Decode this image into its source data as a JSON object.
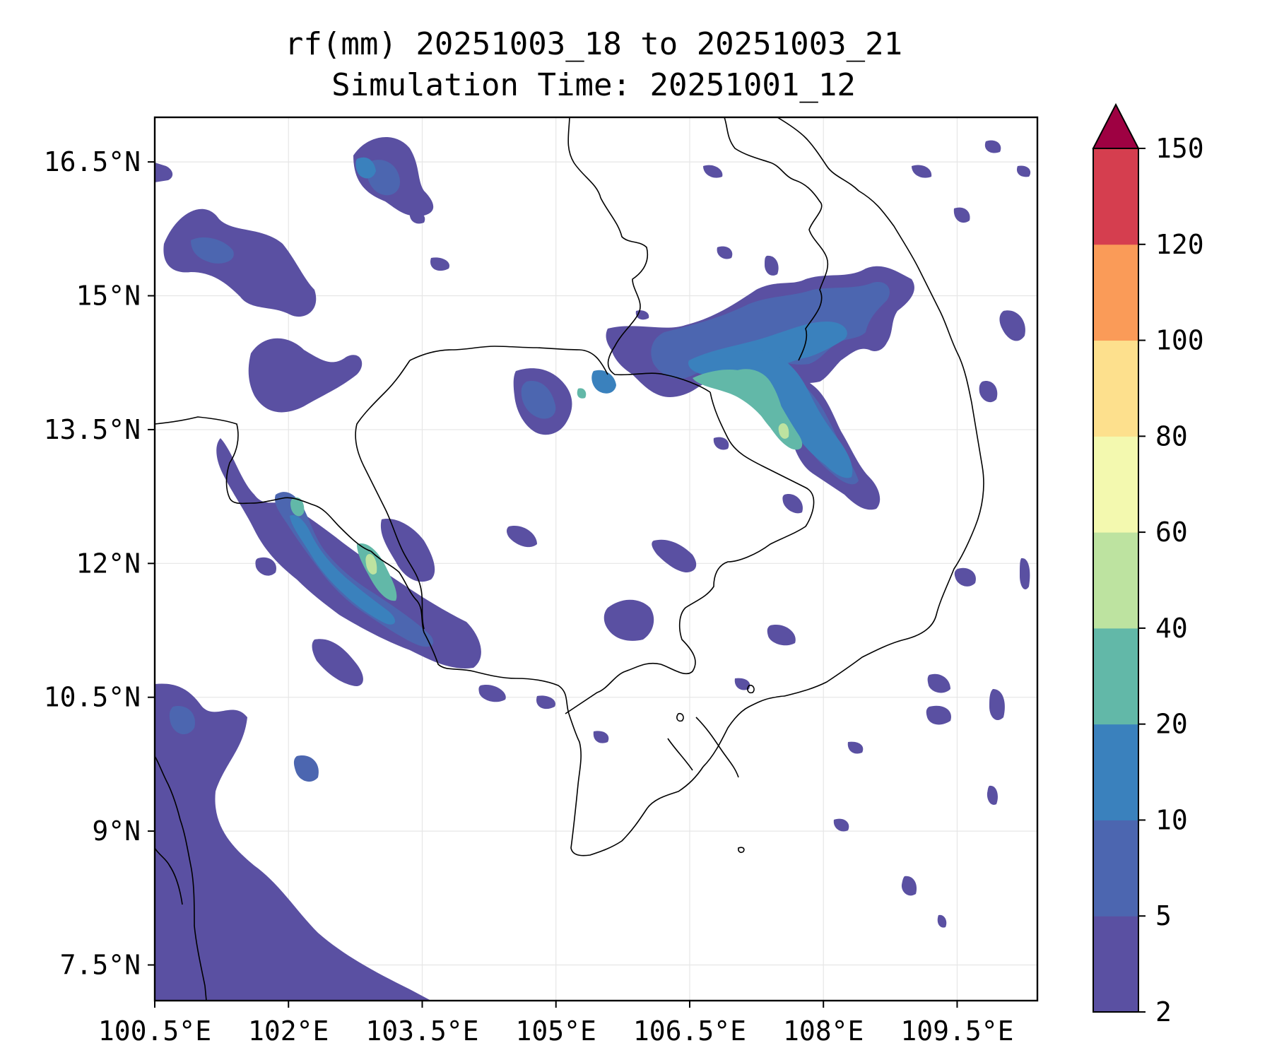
{
  "title": {
    "line1": "rf(mm) 20251003_18 to 20251003_21",
    "line2": "Simulation Time: 20251001_12"
  },
  "axes": {
    "x_ticks": [
      {
        "value": 100.5,
        "label": "100.5°E"
      },
      {
        "value": 102.0,
        "label": "102°E"
      },
      {
        "value": 103.5,
        "label": "103.5°E"
      },
      {
        "value": 105.0,
        "label": "105°E"
      },
      {
        "value": 106.5,
        "label": "106.5°E"
      },
      {
        "value": 108.0,
        "label": "108°E"
      },
      {
        "value": 109.5,
        "label": "109.5°E"
      }
    ],
    "y_ticks": [
      {
        "value": 16.5,
        "label": "16.5°N"
      },
      {
        "value": 15.0,
        "label": "15°N"
      },
      {
        "value": 13.5,
        "label": "13.5°N"
      },
      {
        "value": 12.0,
        "label": "12°N"
      },
      {
        "value": 10.5,
        "label": "10.5°N"
      },
      {
        "value": 9.0,
        "label": "9°N"
      },
      {
        "value": 7.5,
        "label": "7.5°N"
      }
    ],
    "lon_range": [
      100.5,
      110.4
    ],
    "lat_range": [
      7.1,
      17.0
    ]
  },
  "colorbar": {
    "labels": [
      "2",
      "5",
      "10",
      "20",
      "40",
      "60",
      "80",
      "100",
      "120",
      "150"
    ],
    "colors": [
      "#5a50a2",
      "#4c66b0",
      "#3a81bd",
      "#62b8a8",
      "#bde3a0",
      "#f3f9af",
      "#fde08d",
      "#fa9b58",
      "#d53e4f"
    ],
    "extend_color": "#9e0142"
  },
  "colors": {
    "c1": "#5a50a2",
    "c2": "#4c66b0",
    "c3": "#3a81bd",
    "c4": "#62b8a8",
    "c5": "#bde3a0"
  }
}
